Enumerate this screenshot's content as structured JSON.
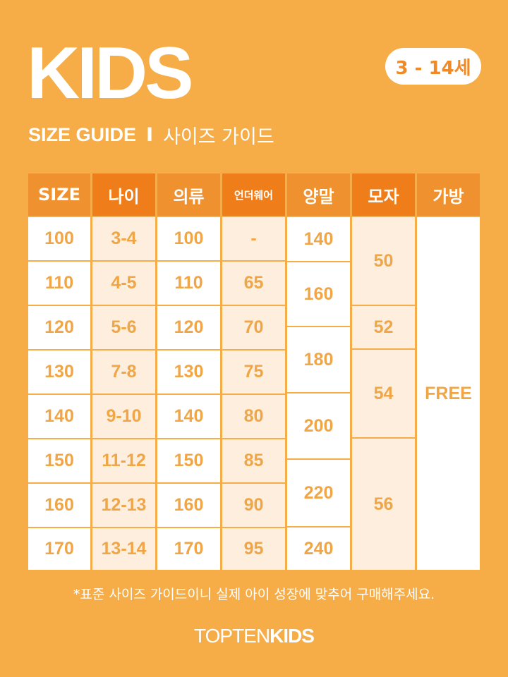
{
  "title": "KIDS",
  "age_badge": "3 - 14세",
  "subtitle": {
    "en": "SIZE GUIDE",
    "sep": "I",
    "ko": "사이즈 가이드"
  },
  "table": {
    "headers": [
      "SIZE",
      "나이",
      "의류",
      "언더웨어",
      "양말",
      "모자",
      "가방"
    ],
    "size": [
      "100",
      "110",
      "120",
      "130",
      "140",
      "150",
      "160",
      "170"
    ],
    "age": [
      "3-4",
      "4-5",
      "5-6",
      "7-8",
      "9-10",
      "11-12",
      "12-13",
      "13-14"
    ],
    "clothing": [
      "100",
      "110",
      "120",
      "130",
      "140",
      "150",
      "160",
      "170"
    ],
    "underwear": [
      "-",
      "65",
      "70",
      "75",
      "80",
      "85",
      "90",
      "95"
    ],
    "socks": [
      "140",
      "160",
      "180",
      "200",
      "220",
      "240"
    ],
    "hat": [
      "50",
      "52",
      "54",
      "56"
    ],
    "bag": "FREE"
  },
  "note": "*표준 사이즈 가이드이니 실제 아이 성장에 맞추어 구매해주세요.",
  "brand": {
    "light": "TOPTEN",
    "bold": "KIDS"
  },
  "colors": {
    "background": "#f6ad48",
    "header": "#f0912f",
    "header_dark": "#ee7d1a",
    "light_cell": "#fdeedd",
    "text": "#f0a646"
  }
}
